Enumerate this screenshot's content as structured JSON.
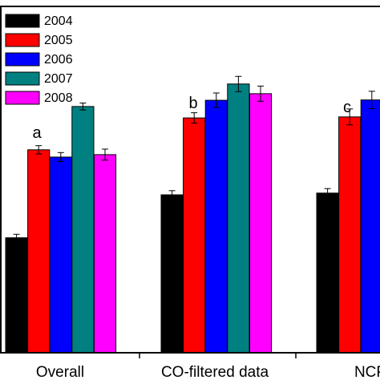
{
  "chart_data": {
    "type": "bar",
    "title": "",
    "xlabel": "",
    "ylabel": "",
    "categories": [
      "Overall",
      "CO-filtered data",
      "NCP"
    ],
    "category_annotations": [
      "a",
      "b",
      "c"
    ],
    "ylim": [
      0,
      100
    ],
    "grid": false,
    "legend_placement": "top-left",
    "series": [
      {
        "name": "2004",
        "color": "#000000",
        "values": [
          33.2,
          45.6,
          46.1
        ],
        "errors": [
          1.0,
          1.2,
          1.3
        ]
      },
      {
        "name": "2005",
        "color": "#ff0000",
        "values": [
          58.6,
          67.8,
          68.1
        ],
        "errors": [
          1.2,
          1.5,
          2.3
        ]
      },
      {
        "name": "2006",
        "color": "#0000ff",
        "values": [
          56.5,
          72.9,
          73.0
        ],
        "errors": [
          1.3,
          2.1,
          2.5
        ]
      },
      {
        "name": "2007",
        "color": "#008080",
        "values": [
          71.1,
          77.6,
          null
        ],
        "errors": [
          1.0,
          2.2,
          null
        ]
      },
      {
        "name": "2008",
        "color": "#ff00ff",
        "values": [
          57.2,
          74.8,
          null
        ],
        "errors": [
          1.6,
          2.2,
          null
        ]
      }
    ]
  }
}
